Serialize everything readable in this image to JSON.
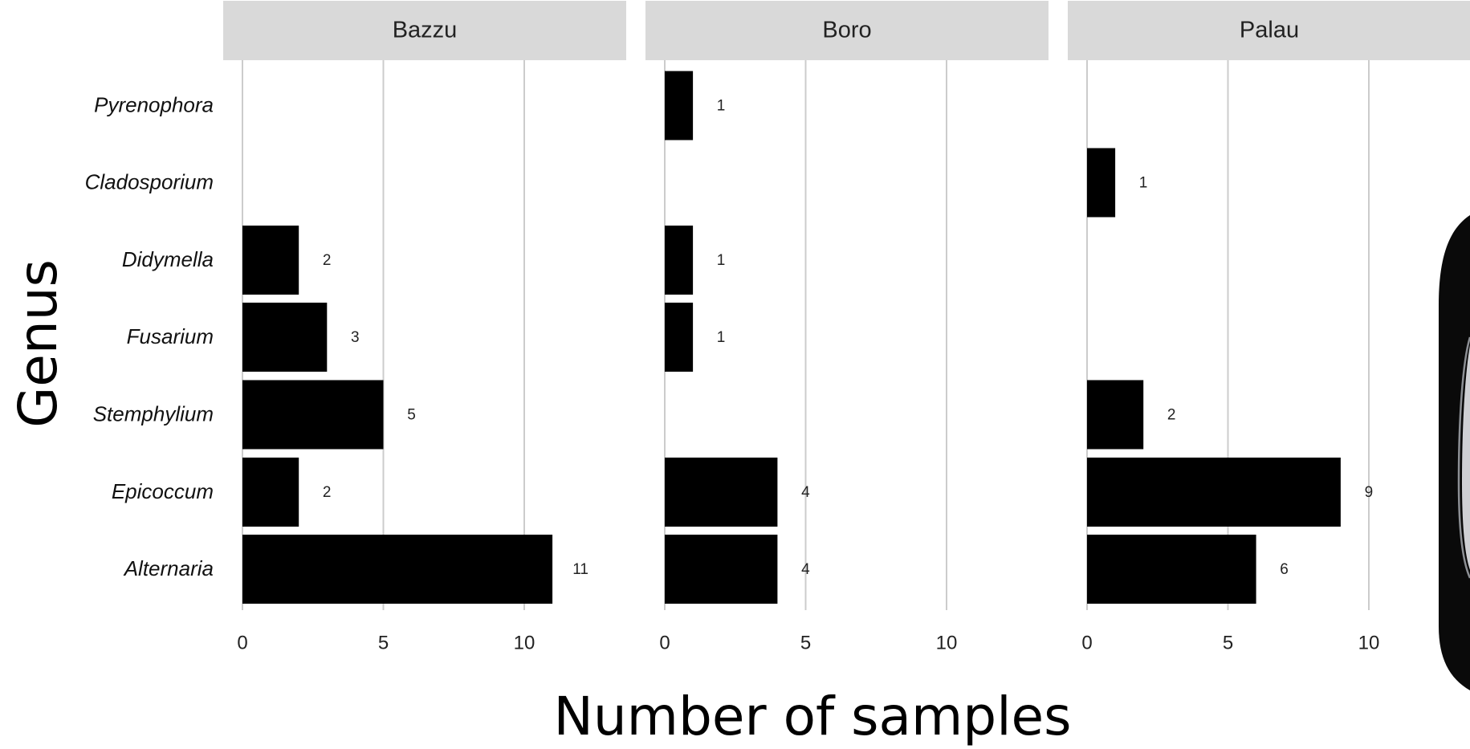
{
  "chart_data": {
    "type": "bar",
    "orientation": "horizontal",
    "facet_layout": "columns",
    "xlabel": "Number of samples",
    "ylabel": "Genus",
    "categories": [
      "Pyrenophora",
      "Cladosporium",
      "Didymella",
      "Fusarium",
      "Stemphylium",
      "Epicoccum",
      "Alternaria"
    ],
    "x_ticks": [
      "0",
      "5",
      "10"
    ],
    "xlim": [
      0,
      13.6
    ],
    "grid": "vertical major lines",
    "bar_color": "#000000",
    "panels": [
      {
        "name": "Bazzu",
        "values": [
          null,
          null,
          2,
          3,
          5,
          2,
          11
        ]
      },
      {
        "name": "Boro",
        "values": [
          1,
          null,
          1,
          1,
          null,
          4,
          4
        ]
      },
      {
        "name": "Palau",
        "values": [
          null,
          1,
          null,
          null,
          2,
          9,
          6
        ]
      }
    ]
  },
  "colors": {
    "strip_background": "#d9d9d9",
    "grid_line": "#cccccc",
    "bar": "#000000",
    "photo_background": "#0a0a0a"
  }
}
